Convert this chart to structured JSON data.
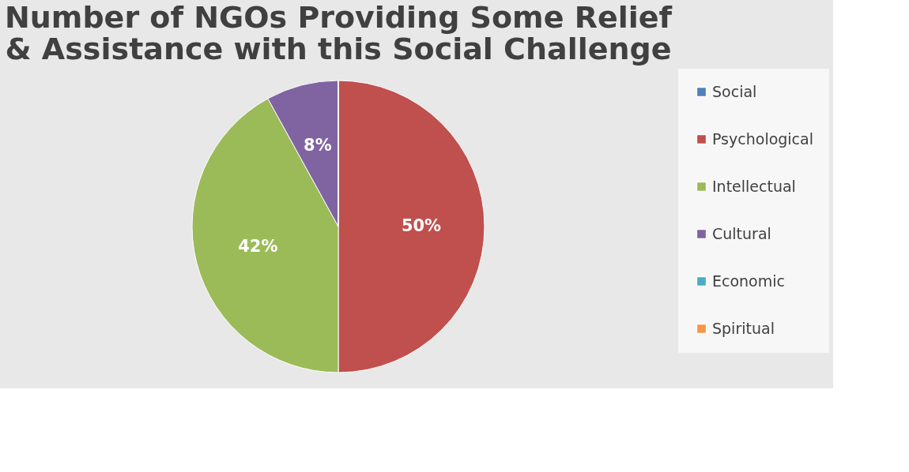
{
  "chart_data": {
    "type": "pie",
    "title": "Number of NGOs Providing Some Relief & Assistance with this Social Challenge",
    "categories": [
      "Social",
      "Psychological",
      "Intellectual",
      "Cultural",
      "Economic",
      "Spiritual"
    ],
    "values": [
      0,
      50,
      42,
      8,
      0,
      0
    ],
    "colors": [
      "#4f81bd",
      "#c0504d",
      "#9bbb59",
      "#8064a2",
      "#4bacc6",
      "#f79646"
    ],
    "value_labels": [
      null,
      "50%",
      "42%",
      "8%",
      null,
      null
    ],
    "legend": "right"
  }
}
